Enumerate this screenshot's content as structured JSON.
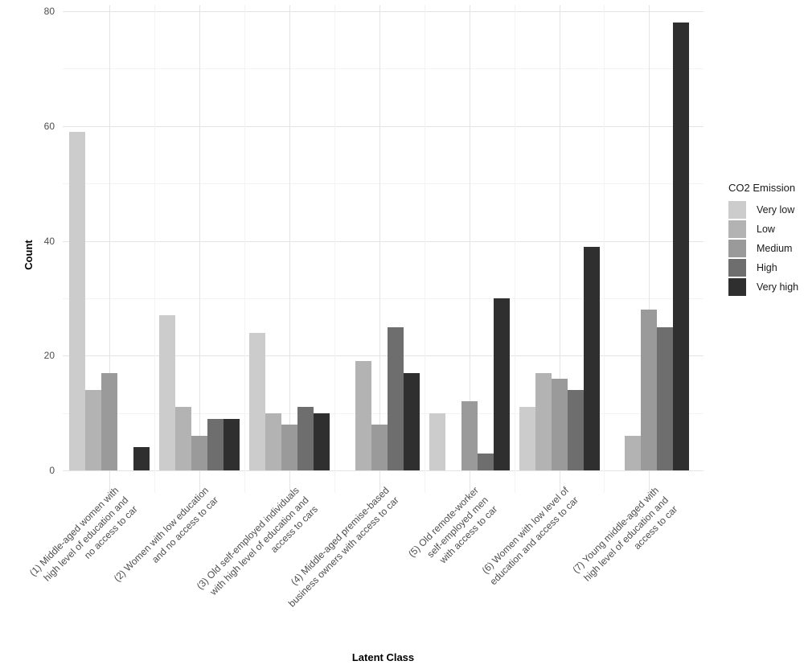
{
  "figure": {
    "x_axis_title": "Latent Class",
    "y_axis_title": "Count"
  },
  "chart_data": {
    "type": "bar",
    "title": "",
    "xlabel": "Latent Class",
    "ylabel": "Count",
    "legend_title": "CO2 Emission",
    "legend_position": "right",
    "grid": true,
    "ylim": [
      0,
      83
    ],
    "yticks": [
      0,
      20,
      40,
      60,
      80
    ],
    "yticks_minor": [
      10,
      30,
      50,
      70
    ],
    "categories": [
      "(1) Middle-aged women with high level of education and no access to car",
      "(2) Women with low education and no access to car",
      "(3) Old self-employed individuals with high level of education and access to cars",
      "(4) Middle-aged premise-based business owners with access to car",
      "(5) Old remote-worker self-employed men with access to car",
      "(6) Women with low level of education and access to car",
      "(7) Young middle-aged with high level of education and access to car"
    ],
    "category_label_lines": [
      [
        "(1) Middle-aged women with",
        "high level of education and",
        "no access to car"
      ],
      [
        "(2) Women with low education",
        "and no access to car"
      ],
      [
        "(3) Old self-employed individuals",
        "with high level of education and",
        "access to cars"
      ],
      [
        "(4) Middle-aged premise-based",
        "business owners with access to car"
      ],
      [
        "(5) Old remote-worker",
        "self-employed men",
        "with access to car"
      ],
      [
        "(6) Women with low level of",
        "education and access to car"
      ],
      [
        "(7) Young middle-aged with",
        "high level of education and",
        "access to car"
      ]
    ],
    "series": [
      {
        "name": "Very low",
        "color": "#cccccc",
        "values": [
          59,
          27,
          24,
          0,
          10,
          11,
          0
        ]
      },
      {
        "name": "Low",
        "color": "#b3b3b3",
        "values": [
          14,
          11,
          10,
          19,
          0,
          17,
          6
        ]
      },
      {
        "name": "Medium",
        "color": "#9a9a9a",
        "values": [
          17,
          6,
          8,
          8,
          12,
          16,
          28
        ]
      },
      {
        "name": "High",
        "color": "#6e6e6e",
        "values": [
          0,
          9,
          11,
          25,
          3,
          14,
          25
        ]
      },
      {
        "name": "Very high",
        "color": "#2f2f2f",
        "values": [
          4,
          9,
          10,
          17,
          30,
          39,
          78
        ]
      }
    ]
  }
}
